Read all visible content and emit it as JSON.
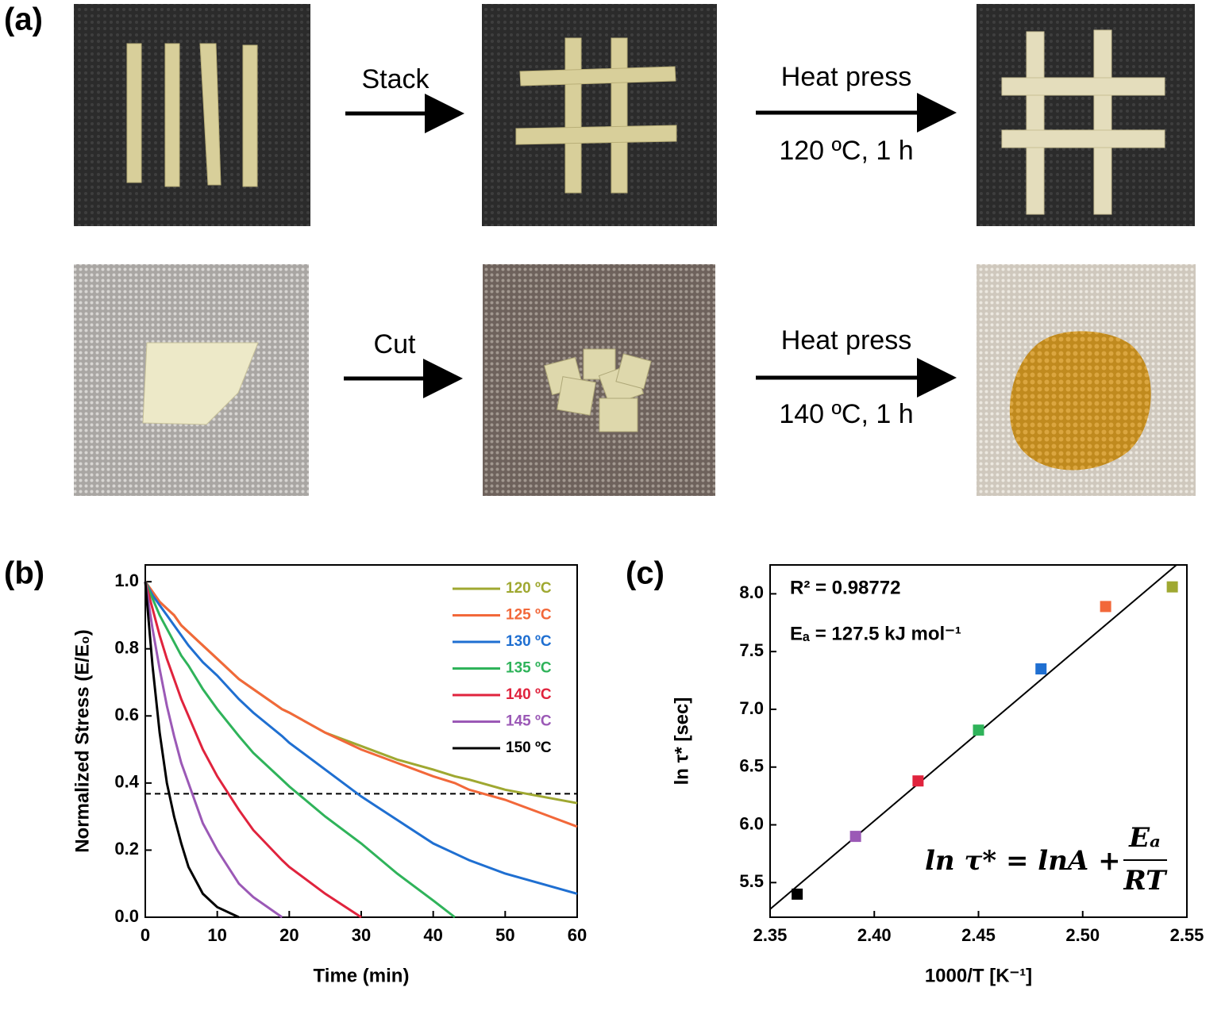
{
  "panel_labels": [
    "(a)",
    "(b)",
    "(c)"
  ],
  "steps": [
    {
      "label": "Stack"
    },
    {
      "label": "Heat press",
      "condition": "120 ºC, 1 h"
    },
    {
      "label": "Cut"
    },
    {
      "label": "Heat press",
      "condition": "140 ºC, 1 h"
    }
  ],
  "chart_data": [
    {
      "type": "line",
      "x_label": "Time (min)",
      "y_label": "Normalized Stress (E/E₀)",
      "x": [
        0,
        1,
        2,
        3,
        4,
        5,
        6,
        8,
        10,
        13,
        15,
        19,
        20,
        25,
        30,
        35,
        40,
        43,
        45,
        50,
        55,
        60
      ],
      "series": [
        {
          "name": "120 ºC",
          "color": "#9fa831",
          "values": [
            1,
            0.97,
            0.94,
            0.92,
            0.9,
            0.87,
            0.85,
            0.81,
            0.77,
            0.71,
            0.68,
            0.62,
            0.61,
            0.55,
            0.51,
            0.47,
            0.44,
            0.42,
            0.41,
            0.38,
            0.36,
            0.34
          ]
        },
        {
          "name": "125 ºC",
          "color": "#f2683a",
          "values": [
            1,
            0.97,
            0.94,
            0.92,
            0.9,
            0.87,
            0.85,
            0.81,
            0.77,
            0.71,
            0.68,
            0.62,
            0.61,
            0.55,
            0.5,
            0.46,
            0.42,
            0.4,
            0.38,
            0.35,
            0.31,
            0.27
          ]
        },
        {
          "name": "130 ºC",
          "color": "#1f6fd1",
          "values": [
            1,
            0.96,
            0.93,
            0.9,
            0.87,
            0.84,
            0.81,
            0.76,
            0.72,
            0.65,
            0.61,
            0.54,
            0.52,
            0.44,
            0.36,
            0.29,
            0.22,
            0.19,
            0.17,
            0.13,
            0.1,
            0.07
          ]
        },
        {
          "name": "135 ºC",
          "color": "#2fb35a",
          "values": [
            1,
            0.95,
            0.9,
            0.86,
            0.82,
            0.78,
            0.75,
            0.68,
            0.62,
            0.54,
            0.49,
            0.41,
            0.39,
            0.3,
            0.22,
            0.13,
            0.05,
            0,
            null,
            null,
            null,
            null
          ]
        },
        {
          "name": "140 ºC",
          "color": "#e0233d",
          "values": [
            1,
            0.92,
            0.84,
            0.77,
            0.71,
            0.65,
            0.6,
            0.5,
            0.42,
            0.32,
            0.26,
            0.17,
            0.15,
            0.07,
            0,
            null,
            null,
            null,
            null,
            null,
            null,
            null
          ]
        },
        {
          "name": "145 ºC",
          "color": "#9b59b6",
          "values": [
            1,
            0.86,
            0.74,
            0.63,
            0.54,
            0.46,
            0.4,
            0.28,
            0.2,
            0.1,
            0.06,
            0,
            null,
            null,
            null,
            null,
            null,
            null,
            null,
            null,
            null,
            null
          ]
        },
        {
          "name": "150 ºC",
          "color": "#000000",
          "values": [
            1,
            0.75,
            0.55,
            0.4,
            0.3,
            0.22,
            0.15,
            0.07,
            0.03,
            0,
            null,
            null,
            null,
            null,
            null,
            null,
            null,
            null,
            null,
            null,
            null,
            null
          ]
        }
      ],
      "hline": 0.368,
      "xlim": [
        0,
        60
      ],
      "xticks": [
        0,
        10,
        20,
        30,
        40,
        50,
        60
      ],
      "ylim": [
        0,
        1.05
      ],
      "yticks": [
        {
          "value": 0,
          "label": "0.0"
        },
        0.2,
        0.4,
        0.6,
        0.8,
        {
          "value": 1,
          "label": "1.0"
        }
      ]
    },
    {
      "type": "scatter",
      "x_label": "1000/T [K⁻¹]",
      "y_label": "ln τ* [sec]",
      "x": [
        2.363,
        2.391,
        2.421,
        2.45,
        2.48,
        2.511,
        2.543
      ],
      "values": [
        5.4,
        5.9,
        6.38,
        6.82,
        7.35,
        7.89,
        8.06
      ],
      "colors": [
        "#000000",
        "#9b59b6",
        "#e0233d",
        "#2fb35a",
        "#1f6fd1",
        "#f2683a",
        "#9fa831"
      ],
      "fit_line": {
        "x": [
          2.35,
          2.545
        ],
        "y": [
          5.27,
          8.25
        ]
      },
      "annotations": [
        "R² = 0.98772",
        "Eₐ = 127.5 kJ mol⁻¹"
      ],
      "equation": {
        "left": "ln τ* = lnA +",
        "numerator": "Eₐ",
        "denominator": "RT"
      },
      "xlim": [
        2.35,
        2.55
      ],
      "xticks": [
        2.35,
        {
          "value": 2.4,
          "label": "2.40"
        },
        2.45,
        {
          "value": 2.5,
          "label": "2.50"
        },
        2.55
      ],
      "ylim": [
        5.2,
        8.25
      ],
      "yticks": [
        5.5,
        {
          "value": 6,
          "label": "6.0"
        },
        6.5,
        {
          "value": 7,
          "label": "7.0"
        },
        7.5,
        {
          "value": 8,
          "label": "8.0"
        }
      ]
    }
  ]
}
